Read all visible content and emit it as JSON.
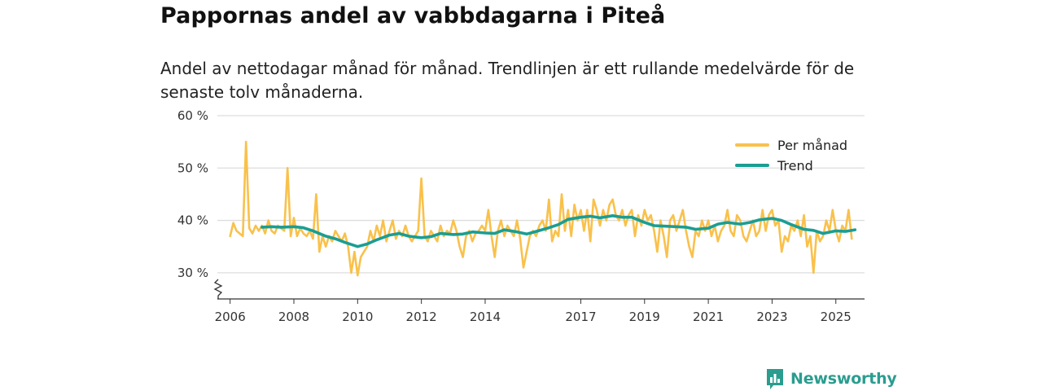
{
  "title": "Pappornas andel av vabbdagarna i Piteå",
  "subtitle": "Andel av nettodagar månad för månad. Trendlinjen är ett rullande medelvärde för de senaste tolv månaderna.",
  "brand": "Newsworthy",
  "colors": {
    "monthly": "#f9c14b",
    "trend": "#1a9e93",
    "grid": "#dddddd",
    "axis": "#333333"
  },
  "chart_data": {
    "type": "line",
    "title": "Pappornas andel av vabbdagarna i Piteå",
    "xlabel": "",
    "ylabel": "",
    "xlim": [
      2005.6,
      2025.9
    ],
    "ylim": [
      25,
      60
    ],
    "y_ticks": [
      30,
      40,
      50,
      60
    ],
    "y_tick_labels": [
      "30 %",
      "40 %",
      "50 %",
      "60 %"
    ],
    "x_ticks": [
      2006,
      2008,
      2010,
      2012,
      2014,
      2017,
      2019,
      2021,
      2023,
      2025
    ],
    "x_tick_labels": [
      "2006",
      "2008",
      "2010",
      "2012",
      "2014",
      "2017",
      "2019",
      "2021",
      "2023",
      "2025"
    ],
    "legend": {
      "placement": "top-right"
    },
    "series": [
      {
        "name": "Per månad",
        "points": [
          [
            2006.0,
            37
          ],
          [
            2006.1,
            39.5
          ],
          [
            2006.2,
            38
          ],
          [
            2006.3,
            37.5
          ],
          [
            2006.4,
            37
          ],
          [
            2006.5,
            55
          ],
          [
            2006.6,
            38.5
          ],
          [
            2006.7,
            37.5
          ],
          [
            2006.8,
            39
          ],
          [
            2006.9,
            38
          ],
          [
            2007.0,
            39
          ],
          [
            2007.1,
            37.5
          ],
          [
            2007.2,
            40
          ],
          [
            2007.3,
            38
          ],
          [
            2007.4,
            37.5
          ],
          [
            2007.5,
            39
          ],
          [
            2007.6,
            38.5
          ],
          [
            2007.7,
            38
          ],
          [
            2007.8,
            50
          ],
          [
            2007.9,
            37
          ],
          [
            2008.0,
            40.5
          ],
          [
            2008.1,
            37
          ],
          [
            2008.2,
            38.5
          ],
          [
            2008.3,
            37.5
          ],
          [
            2008.4,
            37
          ],
          [
            2008.5,
            38
          ],
          [
            2008.6,
            36.5
          ],
          [
            2008.7,
            45
          ],
          [
            2008.8,
            34
          ],
          [
            2008.9,
            37
          ],
          [
            2009.0,
            35
          ],
          [
            2009.1,
            37
          ],
          [
            2009.2,
            36
          ],
          [
            2009.3,
            38
          ],
          [
            2009.4,
            37
          ],
          [
            2009.5,
            36
          ],
          [
            2009.6,
            37.5
          ],
          [
            2009.7,
            35
          ],
          [
            2009.8,
            30
          ],
          [
            2009.9,
            34
          ],
          [
            2010.0,
            29.5
          ],
          [
            2010.1,
            33
          ],
          [
            2010.2,
            34
          ],
          [
            2010.3,
            35
          ],
          [
            2010.4,
            38
          ],
          [
            2010.5,
            36
          ],
          [
            2010.6,
            39
          ],
          [
            2010.7,
            37
          ],
          [
            2010.8,
            40
          ],
          [
            2010.9,
            36
          ],
          [
            2011.0,
            38
          ],
          [
            2011.1,
            40
          ],
          [
            2011.2,
            36.5
          ],
          [
            2011.3,
            38
          ],
          [
            2011.4,
            37
          ],
          [
            2011.5,
            39
          ],
          [
            2011.6,
            37
          ],
          [
            2011.7,
            36
          ],
          [
            2011.8,
            37
          ],
          [
            2011.9,
            38
          ],
          [
            2012.0,
            48
          ],
          [
            2012.1,
            37
          ],
          [
            2012.2,
            36
          ],
          [
            2012.3,
            38
          ],
          [
            2012.4,
            37
          ],
          [
            2012.5,
            36
          ],
          [
            2012.6,
            39
          ],
          [
            2012.7,
            37
          ],
          [
            2012.8,
            38
          ],
          [
            2012.9,
            37.5
          ],
          [
            2013.0,
            40
          ],
          [
            2013.1,
            38
          ],
          [
            2013.2,
            35
          ],
          [
            2013.3,
            33
          ],
          [
            2013.4,
            37
          ],
          [
            2013.5,
            38
          ],
          [
            2013.6,
            36
          ],
          [
            2013.7,
            37.5
          ],
          [
            2013.8,
            38
          ],
          [
            2013.9,
            39
          ],
          [
            2014.0,
            38
          ],
          [
            2014.1,
            42
          ],
          [
            2014.2,
            37
          ],
          [
            2014.3,
            33
          ],
          [
            2014.4,
            38
          ],
          [
            2014.5,
            40
          ],
          [
            2014.6,
            37
          ],
          [
            2014.7,
            39
          ],
          [
            2014.8,
            38
          ],
          [
            2014.9,
            37
          ],
          [
            2015.0,
            40
          ],
          [
            2015.1,
            36.5
          ],
          [
            2015.2,
            31
          ],
          [
            2015.3,
            34
          ],
          [
            2015.4,
            37
          ],
          [
            2015.5,
            38
          ],
          [
            2015.6,
            37
          ],
          [
            2015.7,
            39
          ],
          [
            2015.8,
            40
          ],
          [
            2015.9,
            38
          ],
          [
            2016.0,
            44
          ],
          [
            2016.1,
            36
          ],
          [
            2016.2,
            38
          ],
          [
            2016.3,
            37
          ],
          [
            2016.4,
            45
          ],
          [
            2016.5,
            38
          ],
          [
            2016.6,
            42
          ],
          [
            2016.7,
            37
          ],
          [
            2016.8,
            43
          ],
          [
            2016.9,
            40
          ],
          [
            2017.0,
            42
          ],
          [
            2017.1,
            38
          ],
          [
            2017.2,
            42
          ],
          [
            2017.3,
            36
          ],
          [
            2017.4,
            44
          ],
          [
            2017.5,
            42
          ],
          [
            2017.6,
            39
          ],
          [
            2017.7,
            42
          ],
          [
            2017.8,
            40
          ],
          [
            2017.9,
            43
          ],
          [
            2018.0,
            44
          ],
          [
            2018.1,
            41
          ],
          [
            2018.2,
            40
          ],
          [
            2018.3,
            42
          ],
          [
            2018.4,
            39
          ],
          [
            2018.5,
            41
          ],
          [
            2018.6,
            42
          ],
          [
            2018.7,
            37
          ],
          [
            2018.8,
            41
          ],
          [
            2018.9,
            39
          ],
          [
            2019.0,
            42
          ],
          [
            2019.1,
            40
          ],
          [
            2019.2,
            41
          ],
          [
            2019.3,
            38
          ],
          [
            2019.4,
            34
          ],
          [
            2019.5,
            40
          ],
          [
            2019.6,
            37
          ],
          [
            2019.7,
            33
          ],
          [
            2019.8,
            40
          ],
          [
            2019.9,
            41
          ],
          [
            2020.0,
            38
          ],
          [
            2020.1,
            40
          ],
          [
            2020.2,
            42
          ],
          [
            2020.3,
            38
          ],
          [
            2020.4,
            35
          ],
          [
            2020.5,
            33
          ],
          [
            2020.6,
            38
          ],
          [
            2020.7,
            37
          ],
          [
            2020.8,
            40
          ],
          [
            2020.9,
            38
          ],
          [
            2021.0,
            40
          ],
          [
            2021.1,
            37
          ],
          [
            2021.2,
            39
          ],
          [
            2021.3,
            36
          ],
          [
            2021.4,
            38
          ],
          [
            2021.5,
            39
          ],
          [
            2021.6,
            42
          ],
          [
            2021.7,
            38
          ],
          [
            2021.8,
            37
          ],
          [
            2021.9,
            41
          ],
          [
            2022.0,
            40
          ],
          [
            2022.1,
            37
          ],
          [
            2022.2,
            36
          ],
          [
            2022.3,
            38
          ],
          [
            2022.4,
            40
          ],
          [
            2022.5,
            37
          ],
          [
            2022.6,
            38
          ],
          [
            2022.7,
            42
          ],
          [
            2022.8,
            38
          ],
          [
            2022.9,
            41
          ],
          [
            2023.0,
            42
          ],
          [
            2023.1,
            39
          ],
          [
            2023.2,
            40
          ],
          [
            2023.3,
            34
          ],
          [
            2023.4,
            37
          ],
          [
            2023.5,
            36
          ],
          [
            2023.6,
            39
          ],
          [
            2023.7,
            38
          ],
          [
            2023.8,
            40
          ],
          [
            2023.9,
            37
          ],
          [
            2024.0,
            41
          ],
          [
            2024.1,
            35
          ],
          [
            2024.2,
            37
          ],
          [
            2024.3,
            30
          ],
          [
            2024.4,
            38
          ],
          [
            2024.5,
            36
          ],
          [
            2024.6,
            37
          ],
          [
            2024.7,
            40
          ],
          [
            2024.8,
            38
          ],
          [
            2024.9,
            42
          ],
          [
            2025.0,
            38
          ],
          [
            2025.1,
            36
          ],
          [
            2025.2,
            39
          ],
          [
            2025.3,
            38
          ],
          [
            2025.4,
            42
          ],
          [
            2025.5,
            36.5
          ]
        ]
      },
      {
        "name": "Trend",
        "points": [
          [
            2007.0,
            38.7
          ],
          [
            2007.3,
            38.8
          ],
          [
            2007.6,
            38.7
          ],
          [
            2008.0,
            38.8
          ],
          [
            2008.3,
            38.6
          ],
          [
            2008.6,
            38
          ],
          [
            2009.0,
            37
          ],
          [
            2009.3,
            36.5
          ],
          [
            2009.6,
            35.8
          ],
          [
            2010.0,
            35
          ],
          [
            2010.3,
            35.5
          ],
          [
            2010.6,
            36.3
          ],
          [
            2011.0,
            37.2
          ],
          [
            2011.3,
            37.5
          ],
          [
            2011.6,
            37
          ],
          [
            2012.0,
            36.7
          ],
          [
            2012.3,
            36.9
          ],
          [
            2012.6,
            37.5
          ],
          [
            2013.0,
            37.3
          ],
          [
            2013.3,
            37.4
          ],
          [
            2013.6,
            37.8
          ],
          [
            2014.0,
            37.6
          ],
          [
            2014.3,
            37.5
          ],
          [
            2014.6,
            38.2
          ],
          [
            2015.0,
            37.8
          ],
          [
            2015.3,
            37.4
          ],
          [
            2015.6,
            37.9
          ],
          [
            2016.0,
            38.6
          ],
          [
            2016.3,
            39.2
          ],
          [
            2016.6,
            40.2
          ],
          [
            2017.0,
            40.6
          ],
          [
            2017.3,
            40.8
          ],
          [
            2017.6,
            40.5
          ],
          [
            2018.0,
            40.9
          ],
          [
            2018.3,
            40.6
          ],
          [
            2018.6,
            40.6
          ],
          [
            2019.0,
            39.6
          ],
          [
            2019.3,
            39
          ],
          [
            2019.6,
            38.9
          ],
          [
            2020.0,
            38.8
          ],
          [
            2020.3,
            38.7
          ],
          [
            2020.6,
            38.3
          ],
          [
            2021.0,
            38.5
          ],
          [
            2021.3,
            39.3
          ],
          [
            2021.6,
            39.6
          ],
          [
            2022.0,
            39.3
          ],
          [
            2022.3,
            39.6
          ],
          [
            2022.6,
            40.1
          ],
          [
            2023.0,
            40.4
          ],
          [
            2023.3,
            40
          ],
          [
            2023.6,
            39.2
          ],
          [
            2024.0,
            38.3
          ],
          [
            2024.3,
            38.1
          ],
          [
            2024.6,
            37.5
          ],
          [
            2025.0,
            38
          ],
          [
            2025.3,
            37.9
          ],
          [
            2025.6,
            38.2
          ]
        ]
      }
    ]
  }
}
